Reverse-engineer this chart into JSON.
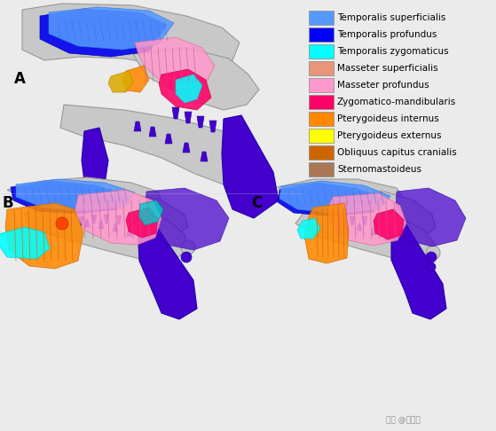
{
  "legend_entries": [
    {
      "label": "Temporalis superficialis",
      "color": "#5599FF"
    },
    {
      "label": "Temporalis profundus",
      "color": "#0000FF"
    },
    {
      "label": "Temporalis zygomaticus",
      "color": "#00FFFF"
    },
    {
      "label": "Masseter superficialis",
      "color": "#E8957A"
    },
    {
      "label": "Masseter profundus",
      "color": "#FF99CC"
    },
    {
      "label": "Zygomatico-mandibularis",
      "color": "#FF0066"
    },
    {
      "label": "Pterygoideus internus",
      "color": "#FF8800"
    },
    {
      "label": "Pterygoideus externus",
      "color": "#FFFF00"
    },
    {
      "label": "Obliquus capitus cranialis",
      "color": "#CC6600"
    },
    {
      "label": "Sternomastoideus",
      "color": "#AA7755"
    }
  ],
  "panel_labels": [
    "A",
    "B",
    "C"
  ],
  "background_color": "#EBEBEB",
  "watermark": "知乎 @双尾猫",
  "legend_fontsize": 7.5,
  "label_fontsize": 12,
  "fig_width": 5.59,
  "fig_height": 4.86,
  "dpi": 100
}
